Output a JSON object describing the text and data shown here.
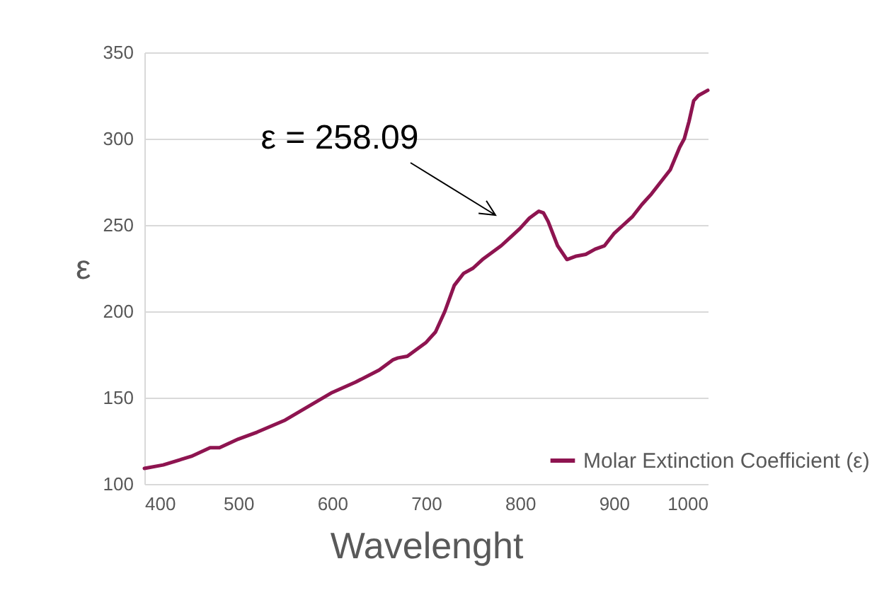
{
  "chart_data": {
    "type": "line",
    "xlabel": "Wavelenght",
    "ylabel": "ε",
    "annotations": [
      "ε = 258.09"
    ],
    "x": [
      400,
      420,
      450,
      470,
      480,
      500,
      520,
      550,
      575,
      600,
      625,
      650,
      665,
      670,
      680,
      700,
      710,
      720,
      730,
      740,
      750,
      760,
      770,
      780,
      790,
      800,
      810,
      820,
      825,
      830,
      840,
      850,
      860,
      870,
      880,
      890,
      900,
      910,
      920,
      930,
      940,
      950,
      960,
      970,
      975,
      980,
      985,
      990,
      1000
    ],
    "series": [
      {
        "name": "Molar Extinction Coefficient (ε)",
        "color": "#8e1450",
        "values": [
          109,
          111,
          116,
          121,
          121,
          126,
          130,
          137,
          145,
          153,
          159,
          166,
          172,
          173,
          174,
          182,
          188,
          200,
          215,
          222,
          225,
          230,
          234,
          238,
          243,
          248,
          254,
          258,
          257,
          252,
          238,
          230,
          232,
          233,
          236,
          238,
          245,
          250,
          255,
          262,
          268,
          275,
          282,
          295,
          300,
          310,
          322,
          325,
          328
        ]
      }
    ],
    "xlim": [
      400,
      1000
    ],
    "xticks": [
      400,
      500,
      600,
      700,
      800,
      900,
      1000
    ],
    "ylim": [
      100,
      350
    ],
    "yticks": [
      100,
      150,
      200,
      250,
      300,
      350
    ],
    "grid": "y",
    "legend": "bottom right",
    "marker": "none",
    "line_style": "solid"
  }
}
